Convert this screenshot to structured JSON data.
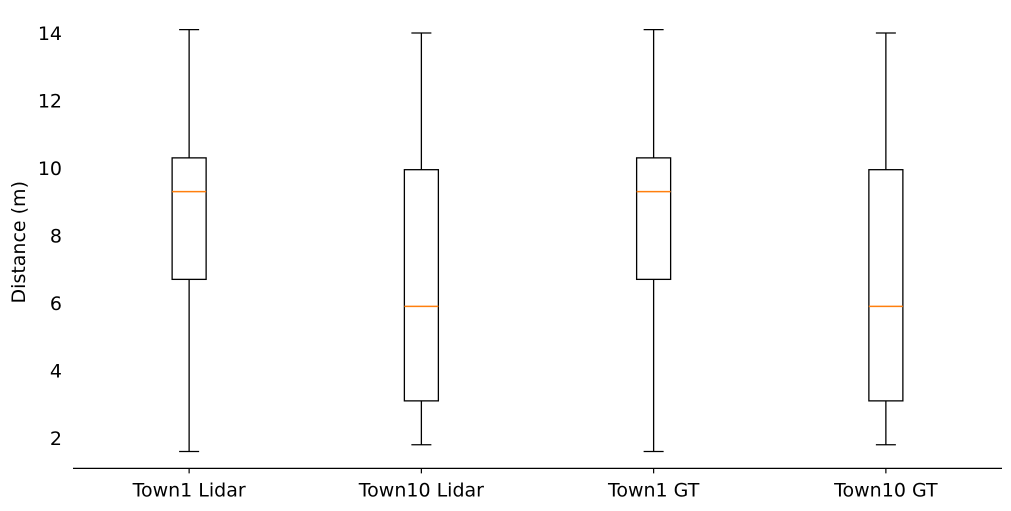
{
  "chart_data": {
    "type": "boxplot",
    "title": "",
    "xlabel": "",
    "ylabel": "Distance (m)",
    "ylim": [
      1.1,
      14.5
    ],
    "yticks": [
      2,
      4,
      6,
      8,
      10,
      12,
      14
    ],
    "categories": [
      "Town1 Lidar",
      "Town10 Lidar",
      "Town1 GT",
      "Town10 GT"
    ],
    "boxes": [
      {
        "category": "Town1 Lidar",
        "whisker_low": 1.6,
        "q1": 6.7,
        "median": 9.3,
        "q3": 10.3,
        "whisker_high": 14.1
      },
      {
        "category": "Town10 Lidar",
        "whisker_low": 1.8,
        "q1": 3.1,
        "median": 5.9,
        "q3": 9.95,
        "whisker_high": 14.0
      },
      {
        "category": "Town1 GT",
        "whisker_low": 1.6,
        "q1": 6.7,
        "median": 9.3,
        "q3": 10.3,
        "whisker_high": 14.1
      },
      {
        "category": "Town10 GT",
        "whisker_low": 1.8,
        "q1": 3.1,
        "median": 5.9,
        "q3": 9.95,
        "whisker_high": 14.0
      }
    ],
    "grid": false,
    "colors": {
      "box": "#000000",
      "median": "#ff7f0e",
      "axis": "#000000"
    }
  }
}
